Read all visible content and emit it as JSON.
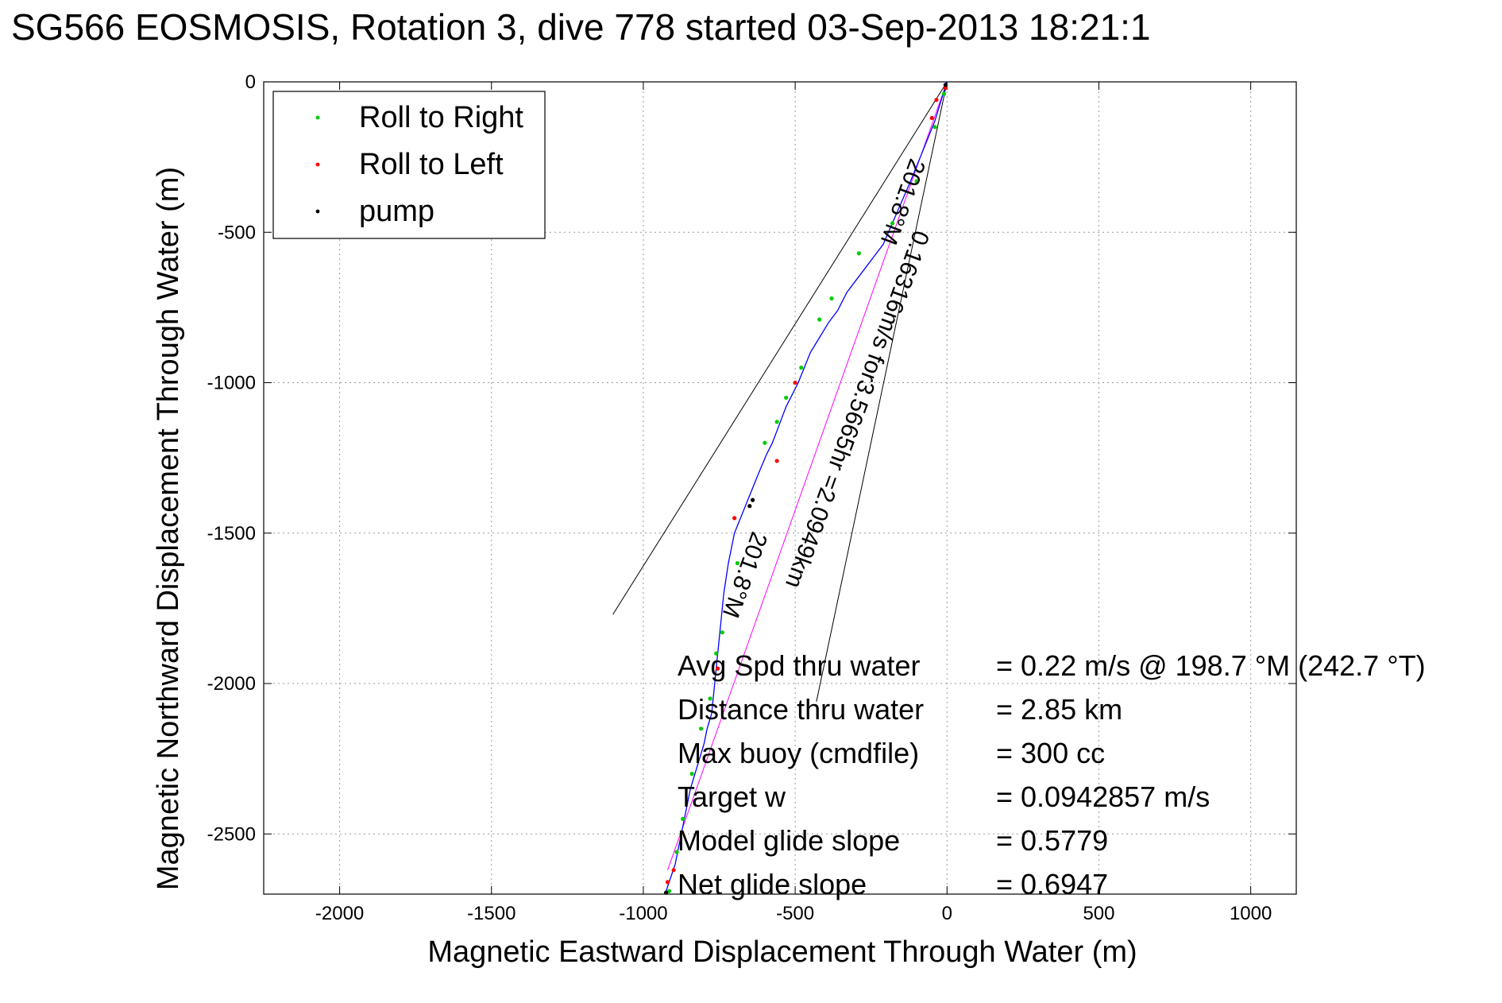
{
  "chart_data": {
    "type": "scatter",
    "title": "SG566 EOSMOSIS, Rotation 3, dive 778 started 03-Sep-2013 18:21:1",
    "xlabel": "Magnetic Eastward Displacement Through Water (m)",
    "ylabel": "Magnetic Northward Displacement Through Water (m)",
    "xlim": [
      -2250,
      1150
    ],
    "ylim": [
      -2700,
      0
    ],
    "xticks": [
      -2000,
      -1500,
      -1000,
      -500,
      0,
      500,
      1000
    ],
    "yticks": [
      0,
      -500,
      -1000,
      -1500,
      -2000,
      -2500
    ],
    "grid": true,
    "legend_position": "top-left",
    "legend": [
      {
        "label": "Roll to Right",
        "color": "#00cc00"
      },
      {
        "label": "Roll to Left",
        "color": "#ff0000"
      },
      {
        "label": "pump",
        "color": "#000000"
      }
    ],
    "track": {
      "color": "#0000ff",
      "x": [
        0,
        -10,
        -25,
        -40,
        -60,
        -80,
        -100,
        -120,
        -150,
        -180,
        -210,
        -240,
        -270,
        -300,
        -330,
        -360,
        -390,
        -420,
        -450,
        -470,
        -490,
        -510,
        -530,
        -545,
        -560,
        -575,
        -595,
        -620,
        -640,
        -660,
        -680,
        -700,
        -720,
        -735,
        -745,
        -755,
        -760,
        -765,
        -770,
        -775,
        -790,
        -800,
        -815,
        -830,
        -845,
        -855,
        -865,
        -875,
        -885,
        -895,
        -905,
        -915,
        -925
      ],
      "y": [
        0,
        -30,
        -80,
        -130,
        -180,
        -230,
        -280,
        -330,
        -400,
        -470,
        -540,
        -580,
        -620,
        -660,
        -700,
        -760,
        -800,
        -850,
        -900,
        -950,
        -1000,
        -1040,
        -1080,
        -1120,
        -1160,
        -1200,
        -1240,
        -1300,
        -1350,
        -1400,
        -1450,
        -1500,
        -1600,
        -1700,
        -1800,
        -1900,
        -1950,
        -2000,
        -2050,
        -2100,
        -2150,
        -2200,
        -2250,
        -2300,
        -2350,
        -2400,
        -2450,
        -2500,
        -2550,
        -2600,
        -2630,
        -2660,
        -2690
      ]
    },
    "roll_right": {
      "color": "#00cc00",
      "x": [
        -10,
        -40,
        -100,
        -180,
        -290,
        -380,
        -420,
        -480,
        -530,
        -560,
        -600,
        -690,
        -740,
        -760,
        -780,
        -810,
        -840,
        -870,
        -890,
        -915
      ],
      "y": [
        -40,
        -150,
        -330,
        -470,
        -570,
        -720,
        -790,
        -950,
        -1050,
        -1130,
        -1200,
        -1600,
        -1830,
        -1900,
        -2050,
        -2150,
        -2300,
        -2450,
        -2560,
        -2690
      ]
    },
    "roll_left": {
      "color": "#ff0000",
      "x": [
        -5,
        -35,
        -50,
        -500,
        -560,
        -700,
        -755,
        -900,
        -920
      ],
      "y": [
        -20,
        -60,
        -120,
        -1000,
        -1260,
        -1450,
        -1950,
        -2620,
        -2660
      ]
    },
    "pump": {
      "color": "#000000",
      "x": [
        -5,
        -640,
        -650,
        -925
      ],
      "y": [
        -10,
        -1390,
        -1410,
        -2695
      ]
    },
    "reference_lines": [
      {
        "x": [
          0,
          -1100
        ],
        "y": [
          0,
          -1770
        ]
      },
      {
        "x": [
          0,
          -430
        ],
        "y": [
          0,
          -2060
        ]
      },
      {
        "x": [
          0,
          -920
        ],
        "y": [
          0,
          -2620
        ],
        "color": "#ff00ff"
      }
    ],
    "annotations": [
      {
        "text": "201.8°M",
        "x": -170,
        "y": -390,
        "rotation": 110
      },
      {
        "text": "0.16316m/s for3.5665hr =2.0949km",
        "x": -320,
        "y": -1080,
        "rotation": 110
      },
      {
        "text": "201.8°M",
        "x": -690,
        "y": -1630,
        "rotation": 110
      }
    ],
    "stats": [
      {
        "label": "Avg Spd thru water",
        "value": "=  0.22 m/s @ 198.7 °M (242.7 °T)"
      },
      {
        "label": "Distance thru water",
        "value": "=  2.85 km"
      },
      {
        "label": "Max buoy (cmdfile)",
        "value": "= 300 cc"
      },
      {
        "label": "Target w",
        "value": "= 0.0942857 m/s"
      },
      {
        "label": "Model glide slope",
        "value": "= 0.5779"
      },
      {
        "label": "Net glide slope",
        "value": "= 0.6947"
      }
    ]
  }
}
